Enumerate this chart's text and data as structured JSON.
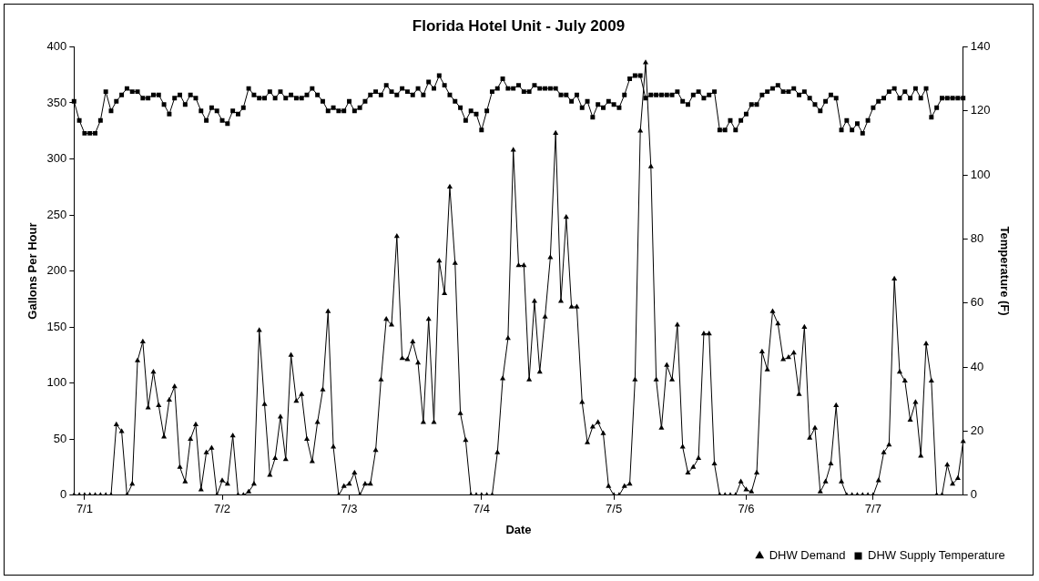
{
  "chart_data": {
    "type": "line",
    "title": "Florida Hotel Unit - July 2009",
    "xlabel": "Date",
    "ylabel": "Gallons Per Hour",
    "y2label": "Temperature (F)",
    "categories": [
      null,
      null,
      "7/1",
      null,
      null,
      null,
      null,
      null,
      null,
      null,
      null,
      null,
      null,
      null,
      null,
      null,
      null,
      null,
      null,
      null,
      null,
      null,
      null,
      null,
      null,
      null,
      null,
      null,
      "7/2",
      null,
      null,
      null,
      null,
      null,
      null,
      null,
      null,
      null,
      null,
      null,
      null,
      null,
      null,
      null,
      null,
      null,
      null,
      null,
      null,
      null,
      null,
      null,
      "7/3",
      null,
      null,
      null,
      null,
      null,
      null,
      null,
      null,
      null,
      null,
      null,
      null,
      null,
      null,
      null,
      null,
      null,
      null,
      null,
      null,
      null,
      null,
      null,
      null,
      "7/4",
      null,
      null,
      null,
      null,
      null,
      null,
      null,
      null,
      null,
      null,
      null,
      null,
      null,
      null,
      null,
      null,
      null,
      null,
      null,
      null,
      null,
      null,
      null,
      null,
      "7/5",
      null,
      null,
      null,
      null,
      null,
      null,
      null,
      null,
      null,
      null,
      null,
      null,
      null,
      null,
      null,
      null,
      null,
      null,
      null,
      null,
      null,
      null,
      null,
      null,
      "7/6",
      null,
      null,
      null,
      null,
      null,
      null,
      null,
      null,
      null,
      null,
      null,
      null,
      null,
      null,
      null,
      null,
      null,
      null,
      null,
      null,
      null,
      null,
      null,
      "7/7",
      null,
      null,
      null,
      null,
      null,
      null,
      null,
      null,
      null,
      null,
      null,
      null,
      null,
      null,
      null,
      null,
      null
    ],
    "series": [
      {
        "name": "DHW Demand",
        "color": "#000000",
        "marker": "triangle",
        "values": [
          0,
          0,
          0,
          0,
          0,
          0,
          0,
          0,
          63,
          57,
          0,
          10,
          120,
          137,
          78,
          110,
          80,
          52,
          85,
          97,
          25,
          12,
          50,
          63,
          5,
          38,
          42,
          0,
          13,
          10,
          53,
          0,
          0,
          3,
          10,
          147,
          81,
          18,
          33,
          70,
          32,
          125,
          84,
          90,
          50,
          30,
          65,
          94,
          164,
          43,
          0,
          8,
          10,
          20,
          0,
          10,
          10,
          40,
          103,
          157,
          152,
          231,
          122,
          121,
          137,
          118,
          65,
          157,
          65,
          209,
          180,
          275,
          207,
          73,
          49,
          0,
          0,
          0,
          0,
          0,
          38,
          104,
          140,
          308,
          205,
          205,
          103,
          173,
          110,
          159,
          212,
          323,
          173,
          248,
          168,
          168,
          83,
          47,
          61,
          65,
          55,
          8,
          0,
          0,
          8,
          10,
          103,
          325,
          386,
          293,
          103,
          60,
          116,
          103,
          152,
          43,
          20,
          25,
          33,
          144,
          144,
          28,
          0,
          0,
          0,
          0,
          12,
          5,
          3,
          20,
          128,
          112,
          164,
          153,
          121,
          123,
          127,
          90,
          150,
          51,
          60,
          3,
          12,
          28,
          80,
          12,
          0,
          0,
          0,
          0,
          0,
          0,
          13,
          38,
          45,
          193,
          110,
          102,
          67,
          83,
          35,
          135,
          102,
          0,
          0,
          27,
          10,
          15,
          48
        ]
      },
      {
        "name": "DHW Supply Temperature",
        "color": "#000000",
        "marker": "square",
        "axis": "y2",
        "values": [
          123,
          117,
          113,
          113,
          113,
          117,
          126,
          120,
          123,
          125,
          127,
          126,
          126,
          124,
          124,
          125,
          125,
          122,
          119,
          124,
          125,
          122,
          125,
          124,
          120,
          117,
          121,
          120,
          117,
          116,
          120,
          119,
          121,
          127,
          125,
          124,
          124,
          126,
          124,
          126,
          124,
          125,
          124,
          124,
          125,
          127,
          125,
          123,
          120,
          121,
          120,
          120,
          123,
          120,
          121,
          123,
          125,
          126,
          125,
          128,
          126,
          125,
          127,
          126,
          125,
          127,
          125,
          129,
          127,
          131,
          128,
          125,
          123,
          121,
          117,
          120,
          119,
          114,
          120,
          126,
          127,
          130,
          127,
          127,
          128,
          126,
          126,
          128,
          127,
          127,
          127,
          127,
          125,
          125,
          123,
          125,
          121,
          123,
          118,
          122,
          121,
          123,
          122,
          121,
          125,
          130,
          131,
          131,
          124,
          125,
          125,
          125,
          125,
          125,
          126,
          123,
          122,
          125,
          126,
          124,
          125,
          126,
          114,
          114,
          117,
          114,
          117,
          119,
          122,
          122,
          125,
          126,
          127,
          128,
          126,
          126,
          127,
          125,
          126,
          124,
          122,
          120,
          123,
          125,
          124,
          114,
          117,
          114,
          116,
          113,
          117,
          121,
          123,
          124,
          126,
          127,
          124,
          126,
          124,
          127,
          124,
          127,
          118,
          121,
          124,
          124,
          124,
          124,
          124
        ]
      }
    ],
    "ylim": [
      0,
      400
    ],
    "yticks": [
      0,
      50,
      100,
      150,
      200,
      250,
      300,
      350,
      400
    ],
    "y2lim": [
      0,
      140
    ],
    "y2ticks": [
      0,
      20,
      40,
      60,
      80,
      100,
      120,
      140
    ],
    "grid": false,
    "legend": "bottom right",
    "line_style": "solid"
  }
}
